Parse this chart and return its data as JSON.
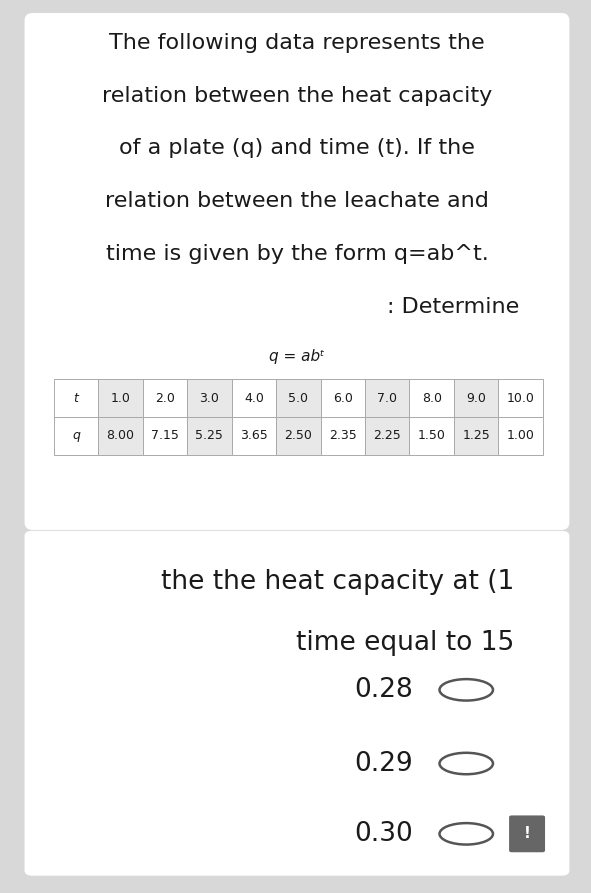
{
  "bg_color": "#d8d8d8",
  "card1_color": "#ffffff",
  "card2_color": "#ffffff",
  "title_lines": [
    "The following data represents the",
    "relation between the heat capacity",
    "of a plate (q) and time (t). If the",
    "relation between the leachate and",
    "time is given by the form q=ab^t.",
    ": Determine"
  ],
  "title_aligns": [
    "center",
    "center",
    "center",
    "center",
    "center",
    "right"
  ],
  "formula_label": "q = abᵗ",
  "table_header": [
    "t",
    "1.0",
    "2.0",
    "3.0",
    "4.0",
    "5.0",
    "6.0",
    "7.0",
    "8.0",
    "9.0",
    "10.0"
  ],
  "table_row": [
    "q",
    "8.00",
    "7.15",
    "5.25",
    "3.65",
    "2.50",
    "2.35",
    "2.25",
    "1.50",
    "1.25",
    "1.00"
  ],
  "table_shade_color": "#e8e8e8",
  "table_white_color": "#ffffff",
  "question_lines": [
    "the the heat capacity at (1",
    "time equal to 15"
  ],
  "question_aligns": [
    "right",
    "right"
  ],
  "options": [
    "0.28",
    "0.29",
    "0.30"
  ],
  "title_fontsize": 16,
  "formula_fontsize": 11,
  "table_fontsize": 9,
  "question_fontsize": 19,
  "option_fontsize": 19
}
